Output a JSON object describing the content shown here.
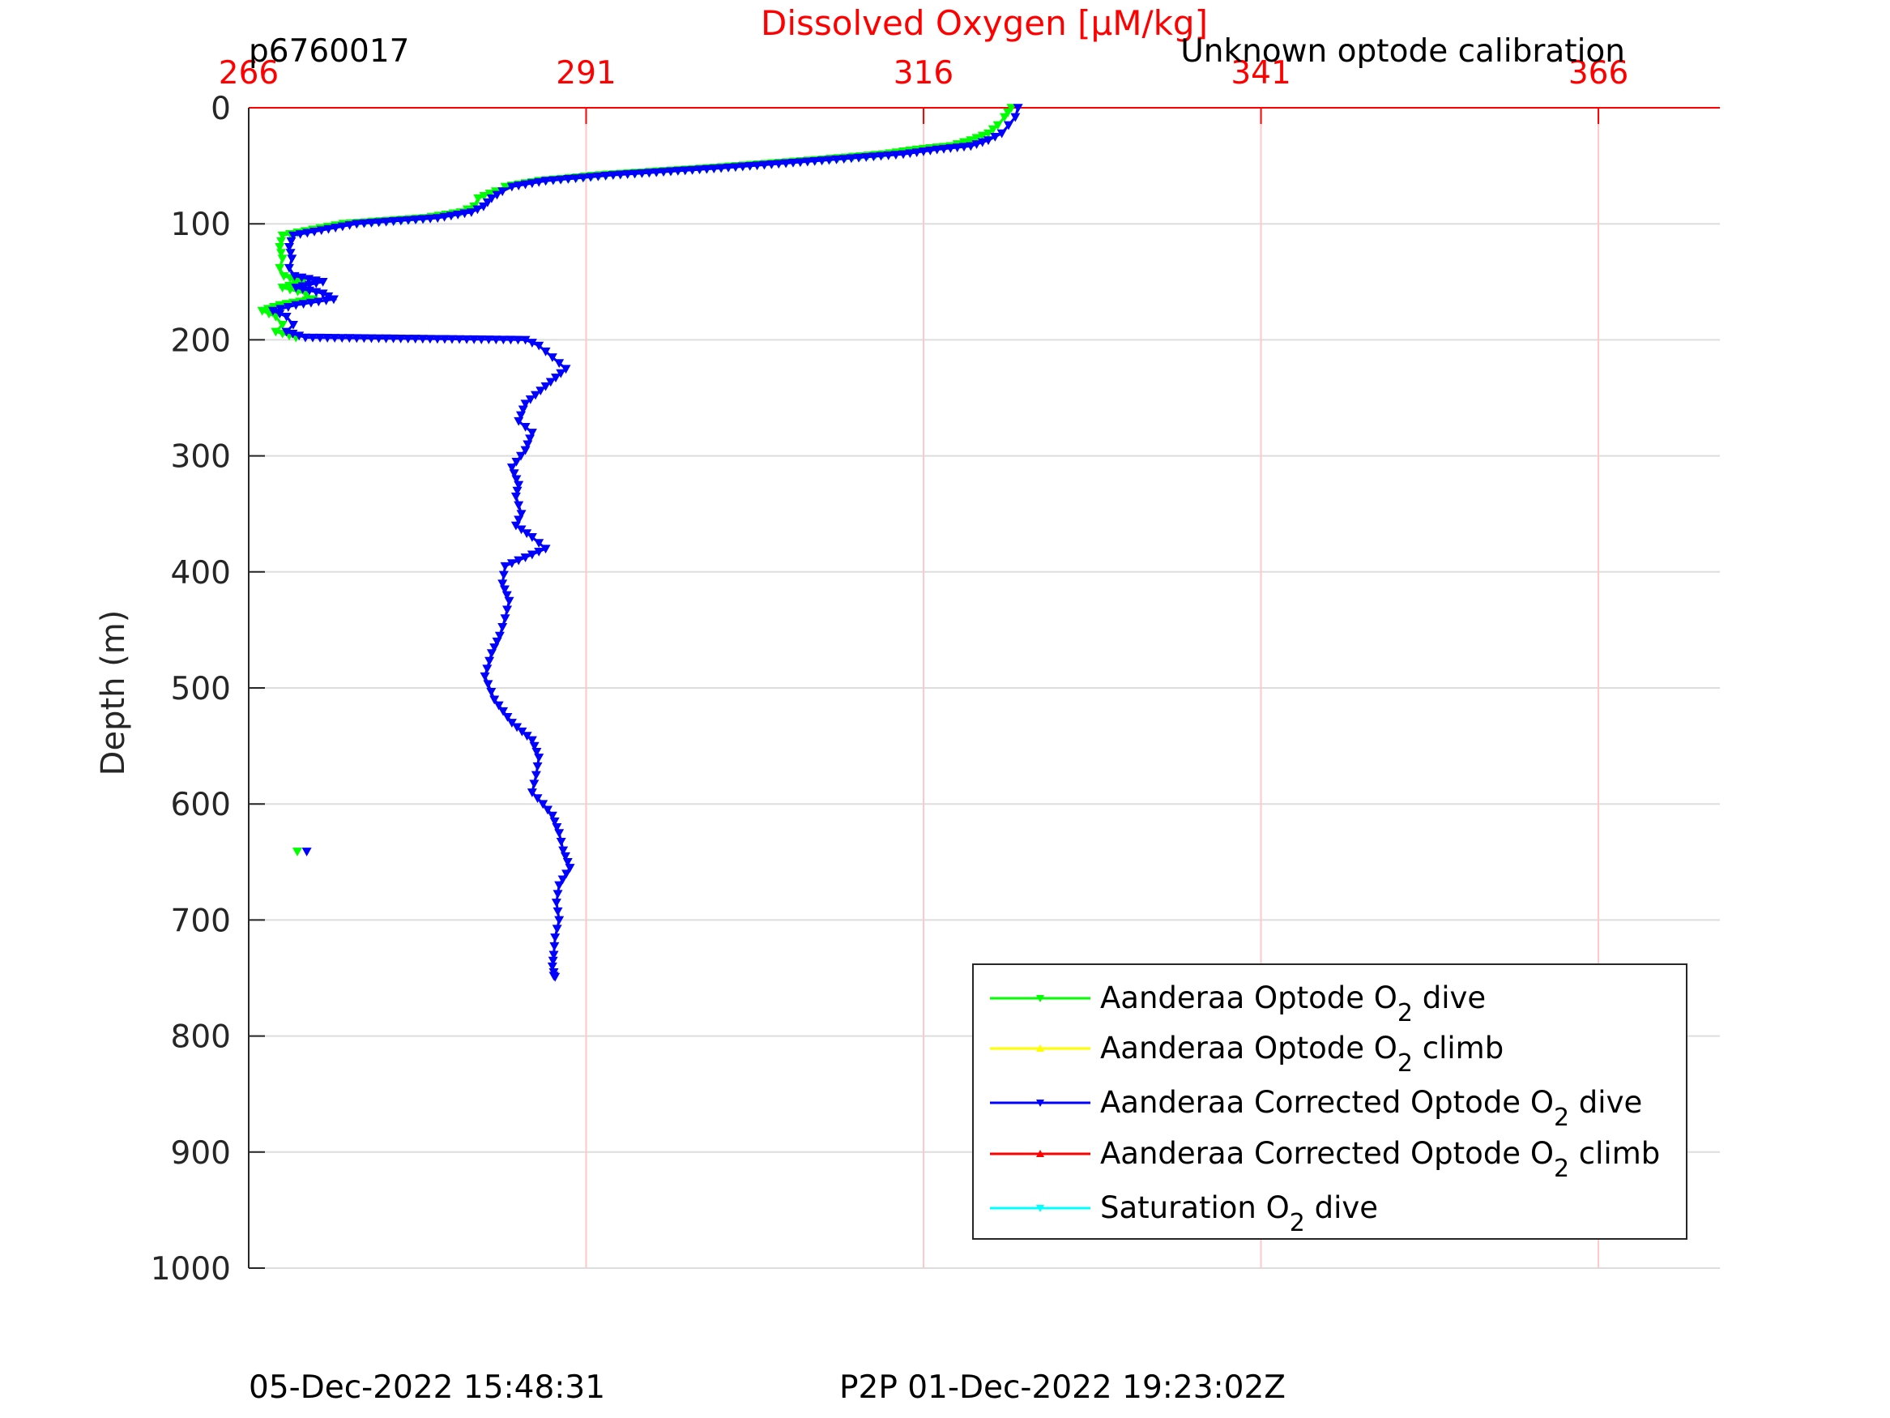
{
  "chart_data": {
    "type": "line",
    "title": "Dissolved Oxygen [μM/kg]",
    "title_color": "#ff0000",
    "top_left_label": "p6760017",
    "top_right_label": "Unknown optode calibration",
    "bottom_left_label": "05-Dec-2022 15:48:31",
    "bottom_center_label": "P2P 01-Dec-2022 19:23:02Z",
    "xlabel": "Dissolved Oxygen [μM/kg]",
    "ylabel": "Depth (m)",
    "x_axis_position": "top",
    "y_reversed": true,
    "xlim": [
      266,
      375
    ],
    "ylim": [
      0,
      1000
    ],
    "x_ticks": [
      "266",
      "291",
      "316",
      "341",
      "366"
    ],
    "y_ticks": [
      "0",
      "100",
      "200",
      "300",
      "400",
      "500",
      "600",
      "700",
      "800",
      "900",
      "1000"
    ],
    "grid": true,
    "legend_position": "bottom-right",
    "series": [
      {
        "name": "Aanderaa Optode O2 dive",
        "label_main": "Aanderaa Optode O",
        "label_sub": "2",
        "label_tail": " dive",
        "color": "#00ff00",
        "marker": "triangle-down",
        "x": [
          322.5,
          322.0,
          321.5,
          320.8,
          319.5,
          318.0,
          315.5,
          313.0,
          308.0,
          300.0,
          292.0,
          287.5,
          285.0,
          284.3,
          283.0,
          282.7,
          281.7,
          279.0,
          273.0,
          268.5,
          268.3,
          268.5,
          268.3,
          268.6,
          270.0,
          268.5,
          270.2,
          270.8,
          268.3,
          267.0,
          268.0,
          268.5,
          268.0,
          269.5
        ],
        "y": [
          0,
          8,
          15,
          22,
          28,
          33,
          36,
          40,
          45,
          52,
          58,
          63,
          68,
          72,
          78,
          85,
          90,
          95,
          100,
          110,
          120,
          130,
          138,
          145,
          150,
          155,
          160,
          165,
          170,
          175,
          180,
          187,
          193,
          198
        ]
      },
      {
        "name": "Aanderaa Optode O2 climb",
        "label_main": "Aanderaa Optode O",
        "label_sub": "2",
        "label_tail": " climb",
        "color": "#ffff00",
        "marker": "triangle-up",
        "x": [],
        "y": []
      },
      {
        "name": "Aanderaa Corrected Optode O2 dive",
        "label_main": "Aanderaa Corrected Optode O",
        "label_sub": "2",
        "label_tail": " dive",
        "color": "#0000ff",
        "marker": "triangle-down",
        "x": [
          323.0,
          322.8,
          322.3,
          321.8,
          320.8,
          319.5,
          317.0,
          314.5,
          309.0,
          301.0,
          293.0,
          288.0,
          285.5,
          284.8,
          284.0,
          283.4,
          282.5,
          280.0,
          274.0,
          269.3,
          269.0,
          269.2,
          269.0,
          269.4,
          271.5,
          269.5,
          271.5,
          272.3,
          269.5,
          267.8,
          268.8,
          269.3,
          268.8,
          270.2,
          286.5,
          287.5,
          288.5,
          289.5,
          288.0,
          286.5,
          286.0,
          287.0,
          286.5,
          285.5,
          286.0,
          285.8,
          286.2,
          285.8,
          287.0,
          288.0,
          285.0,
          284.8,
          285.3,
          285.0,
          284.6,
          284.0,
          283.5,
          284.2,
          285.5,
          287.0,
          287.5,
          287.3,
          287.0,
          287.8,
          288.5,
          289.0,
          289.3,
          289.8,
          289.0,
          288.8,
          289.0,
          288.7,
          288.6,
          288.5,
          288.6,
          288.6,
          288.7,
          270.2
        ],
        "y": [
          0,
          8,
          15,
          22,
          28,
          33,
          36,
          40,
          45,
          52,
          58,
          63,
          68,
          72,
          78,
          85,
          90,
          95,
          100,
          110,
          120,
          130,
          138,
          145,
          150,
          155,
          160,
          165,
          170,
          175,
          180,
          187,
          193,
          198,
          200,
          205,
          215,
          225,
          240,
          255,
          270,
          280,
          295,
          310,
          325,
          335,
          350,
          360,
          370,
          380,
          395,
          410,
          425,
          440,
          455,
          470,
          490,
          510,
          530,
          545,
          560,
          575,
          590,
          600,
          610,
          625,
          640,
          655,
          670,
          685,
          700,
          715,
          730,
          740,
          745,
          748,
          749,
          641
        ]
      },
      {
        "name": "Aanderaa Corrected Optode O2 climb",
        "label_main": "Aanderaa Corrected Optode O",
        "label_sub": "2",
        "label_tail": " climb",
        "color": "#ff0000",
        "marker": "triangle-up",
        "x": [],
        "y": []
      },
      {
        "name": "Saturation O2 dive",
        "label_main": "Saturation O",
        "label_sub": "2",
        "label_tail": " dive",
        "color": "#00ffff",
        "marker": "triangle-down",
        "x": [],
        "y": []
      }
    ],
    "isolated_points": [
      {
        "series": "Aanderaa Optode O2 dive",
        "x": 269.6,
        "y": 641,
        "color": "#00ff00"
      },
      {
        "series": "Aanderaa Corrected Optode O2 dive",
        "x": 270.3,
        "y": 641,
        "color": "#0000ff"
      }
    ]
  }
}
